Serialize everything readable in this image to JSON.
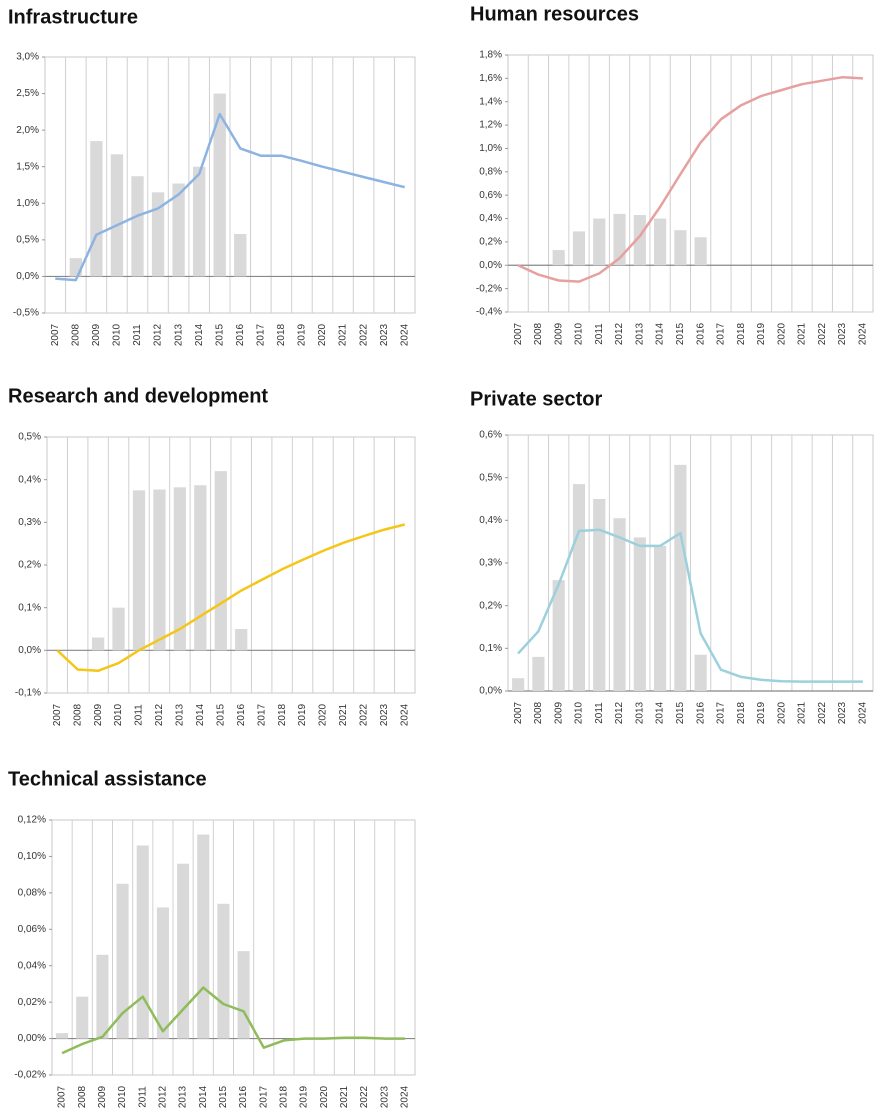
{
  "chart_data": [
    {
      "type": "combo",
      "title": "Infrastructure",
      "grid": true,
      "categories": [
        "2007",
        "2008",
        "2009",
        "2010",
        "2011",
        "2012",
        "2013",
        "2014",
        "2015",
        "2016",
        "2017",
        "2018",
        "2019",
        "2020",
        "2021",
        "2022",
        "2023",
        "2024"
      ],
      "ylim": [
        -0.5,
        3.0
      ],
      "yticks": [
        {
          "value": -0.5,
          "label": "-0,5%"
        },
        {
          "value": 0,
          "label": "0,0%"
        },
        {
          "value": 0.5,
          "label": "0,5%"
        },
        {
          "value": 1.0,
          "label": "1,0%"
        },
        {
          "value": 1.5,
          "label": "1,5%"
        },
        {
          "value": 2.0,
          "label": "2,0%"
        },
        {
          "value": 2.5,
          "label": "2,5%"
        },
        {
          "value": 3.0,
          "label": "3,0%"
        }
      ],
      "series": [
        {
          "kind": "bar",
          "color": "#d9d9d9",
          "values": [
            null,
            0.25,
            1.85,
            1.67,
            1.37,
            1.15,
            1.27,
            1.5,
            2.5,
            0.58,
            null,
            null,
            null,
            null,
            null,
            null,
            null,
            null
          ]
        },
        {
          "kind": "line",
          "color": "#8db3e2",
          "values": [
            -0.03,
            -0.05,
            0.57,
            0.7,
            0.83,
            0.93,
            1.12,
            1.4,
            2.22,
            1.75,
            1.65,
            1.65,
            1.58,
            1.5,
            1.43,
            1.36,
            1.29,
            1.22
          ]
        }
      ]
    },
    {
      "type": "combo",
      "title": "Human resources",
      "grid": true,
      "categories": [
        "2007",
        "2008",
        "2009",
        "2010",
        "2011",
        "2012",
        "2013",
        "2014",
        "2015",
        "2016",
        "2017",
        "2018",
        "2019",
        "2020",
        "2021",
        "2022",
        "2023",
        "2024"
      ],
      "ylim": [
        -0.4,
        1.8
      ],
      "yticks": [
        {
          "value": -0.4,
          "label": "-0,4%"
        },
        {
          "value": -0.2,
          "label": "-0,2%"
        },
        {
          "value": 0,
          "label": "0,0%"
        },
        {
          "value": 0.2,
          "label": "0,2%"
        },
        {
          "value": 0.4,
          "label": "0,4%"
        },
        {
          "value": 0.6,
          "label": "0,6%"
        },
        {
          "value": 0.8,
          "label": "0,8%"
        },
        {
          "value": 1.0,
          "label": "1,0%"
        },
        {
          "value": 1.2,
          "label": "1,2%"
        },
        {
          "value": 1.4,
          "label": "1,4%"
        },
        {
          "value": 1.6,
          "label": "1,6%"
        },
        {
          "value": 1.8,
          "label": "1,8%"
        }
      ],
      "series": [
        {
          "kind": "bar",
          "color": "#d9d9d9",
          "values": [
            null,
            null,
            0.13,
            0.29,
            0.4,
            0.44,
            0.43,
            0.4,
            0.3,
            0.24,
            null,
            null,
            null,
            null,
            null,
            null,
            null,
            null
          ]
        },
        {
          "kind": "line",
          "color": "#e6a0a0",
          "values": [
            0.0,
            -0.08,
            -0.13,
            -0.14,
            -0.07,
            0.06,
            0.25,
            0.5,
            0.78,
            1.05,
            1.25,
            1.37,
            1.45,
            1.5,
            1.55,
            1.58,
            1.61,
            1.6
          ]
        }
      ]
    },
    {
      "type": "combo",
      "title": "Research and development",
      "grid": true,
      "categories": [
        "2007",
        "2008",
        "2009",
        "2010",
        "2011",
        "2012",
        "2013",
        "2014",
        "2015",
        "2016",
        "2017",
        "2018",
        "2019",
        "2020",
        "2021",
        "2022",
        "2023",
        "2024"
      ],
      "ylim": [
        -0.1,
        0.5
      ],
      "yticks": [
        {
          "value": -0.1,
          "label": "-0,1%"
        },
        {
          "value": 0,
          "label": "0,0%"
        },
        {
          "value": 0.1,
          "label": "0,1%"
        },
        {
          "value": 0.2,
          "label": "0,2%"
        },
        {
          "value": 0.3,
          "label": "0,3%"
        },
        {
          "value": 0.4,
          "label": "0,4%"
        },
        {
          "value": 0.5,
          "label": "0,5%"
        }
      ],
      "series": [
        {
          "kind": "bar",
          "color": "#d9d9d9",
          "values": [
            null,
            null,
            0.03,
            0.1,
            0.375,
            0.377,
            0.382,
            0.387,
            0.42,
            0.05,
            null,
            null,
            null,
            null,
            null,
            null,
            null,
            null
          ]
        },
        {
          "kind": "line",
          "color": "#f5c518",
          "values": [
            0.0,
            -0.045,
            -0.048,
            -0.03,
            0.0,
            0.025,
            0.05,
            0.08,
            0.11,
            0.14,
            0.165,
            0.19,
            0.212,
            0.233,
            0.252,
            0.268,
            0.283,
            0.295
          ]
        }
      ]
    },
    {
      "type": "combo",
      "title": "Private sector",
      "grid": true,
      "categories": [
        "2007",
        "2008",
        "2009",
        "2010",
        "2011",
        "2012",
        "2013",
        "2014",
        "2015",
        "2016",
        "2017",
        "2018",
        "2019",
        "2020",
        "2021",
        "2022",
        "2023",
        "2024"
      ],
      "ylim": [
        0,
        0.6
      ],
      "yticks": [
        {
          "value": 0,
          "label": "0,0%"
        },
        {
          "value": 0.1,
          "label": "0,1%"
        },
        {
          "value": 0.2,
          "label": "0,2%"
        },
        {
          "value": 0.3,
          "label": "0,3%"
        },
        {
          "value": 0.4,
          "label": "0,4%"
        },
        {
          "value": 0.5,
          "label": "0,5%"
        },
        {
          "value": 0.6,
          "label": "0,6%"
        }
      ],
      "series": [
        {
          "kind": "bar",
          "color": "#d9d9d9",
          "values": [
            0.03,
            0.08,
            0.26,
            0.485,
            0.45,
            0.405,
            0.36,
            0.34,
            0.53,
            0.085,
            null,
            null,
            null,
            null,
            null,
            null,
            null,
            null
          ]
        },
        {
          "kind": "line",
          "color": "#9dd0dd",
          "values": [
            0.088,
            0.14,
            0.25,
            0.375,
            0.378,
            0.36,
            0.34,
            0.34,
            0.37,
            0.135,
            0.05,
            0.033,
            0.026,
            0.023,
            0.022,
            0.022,
            0.022,
            0.022
          ]
        }
      ]
    },
    {
      "type": "combo",
      "title": "Technical assistance",
      "grid": true,
      "categories": [
        "2007",
        "2008",
        "2009",
        "2010",
        "2011",
        "2012",
        "2013",
        "2014",
        "2015",
        "2016",
        "2017",
        "2018",
        "2019",
        "2020",
        "2021",
        "2022",
        "2023",
        "2024"
      ],
      "ylim": [
        -0.02,
        0.12
      ],
      "yticks": [
        {
          "value": -0.02,
          "label": "-0,02%"
        },
        {
          "value": 0,
          "label": "0,00%"
        },
        {
          "value": 0.02,
          "label": "0,02%"
        },
        {
          "value": 0.04,
          "label": "0,04%"
        },
        {
          "value": 0.06,
          "label": "0,06%"
        },
        {
          "value": 0.08,
          "label": "0,08%"
        },
        {
          "value": 0.1,
          "label": "0,10%"
        },
        {
          "value": 0.12,
          "label": "0,12%"
        }
      ],
      "series": [
        {
          "kind": "bar",
          "color": "#d9d9d9",
          "values": [
            0.003,
            0.023,
            0.046,
            0.085,
            0.106,
            0.072,
            0.096,
            0.112,
            0.074,
            0.048,
            null,
            null,
            null,
            null,
            null,
            null,
            null,
            null
          ]
        },
        {
          "kind": "line",
          "color": "#8fbc5a",
          "values": [
            -0.008,
            -0.003,
            0.001,
            0.014,
            0.023,
            0.004,
            0.016,
            0.028,
            0.019,
            0.015,
            -0.005,
            -0.001,
            0,
            0,
            0.0005,
            0.0005,
            0,
            0
          ]
        }
      ]
    }
  ]
}
